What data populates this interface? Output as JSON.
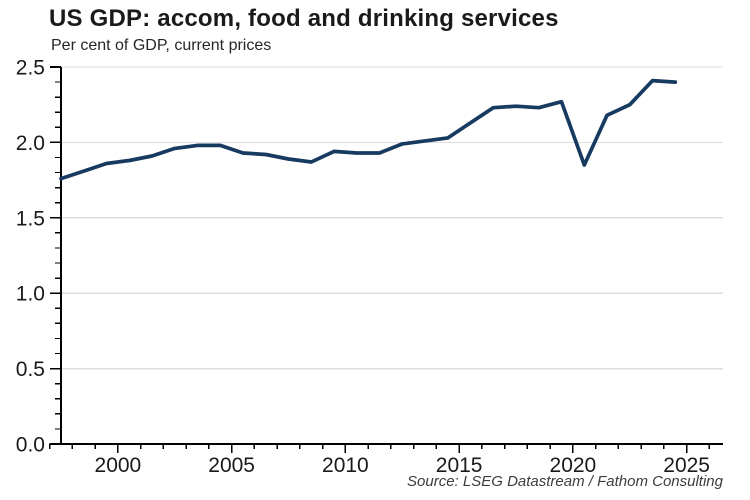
{
  "header": {
    "title": "US GDP: accom, food and drinking services",
    "subtitle": "Per cent of GDP, current prices"
  },
  "footer": {
    "source": "Source: LSEG Datastream / Fathom Consulting"
  },
  "chart_data": {
    "type": "line",
    "title": "US GDP: accom, food and drinking services",
    "subtitle": "Per cent of GDP, current prices",
    "source": "Source: LSEG Datastream / Fathom Consulting",
    "x": [
      1997,
      1998,
      1999,
      2000,
      2001,
      2002,
      2003,
      2004,
      2005,
      2006,
      2007,
      2008,
      2009,
      2010,
      2011,
      2012,
      2013,
      2014,
      2015,
      2016,
      2017,
      2018,
      2019,
      2020,
      2021,
      2022,
      2023,
      2024
    ],
    "series": [
      {
        "name": "Accommodation, food and drinking services, share of US GDP",
        "values": [
          1.76,
          1.81,
          1.86,
          1.88,
          1.91,
          1.96,
          1.98,
          1.98,
          1.93,
          1.92,
          1.89,
          1.87,
          1.94,
          1.93,
          1.93,
          1.99,
          2.01,
          2.03,
          2.13,
          2.23,
          2.24,
          2.23,
          2.27,
          1.85,
          2.18,
          2.25,
          2.41,
          2.4
        ]
      }
    ],
    "xlabel": "",
    "ylabel": "",
    "ylim": [
      0.0,
      2.5
    ],
    "yticks": [
      0.0,
      0.5,
      1.0,
      1.5,
      2.0,
      2.5
    ],
    "ytick_labels": [
      "0.0",
      "0.5",
      "1.0",
      "1.5",
      "2.0",
      "2.5"
    ],
    "y_minor_step": 0.1,
    "xticks": [
      2000,
      2005,
      2010,
      2015,
      2020,
      2025
    ],
    "xtick_minor_years": [
      1997,
      2026
    ],
    "grid": "horizontal-major",
    "legend": "none",
    "colors": {
      "line": "#173a60",
      "grid": "#dddddd",
      "axis": "#000000",
      "tick_label": "#1a1a1a"
    }
  }
}
